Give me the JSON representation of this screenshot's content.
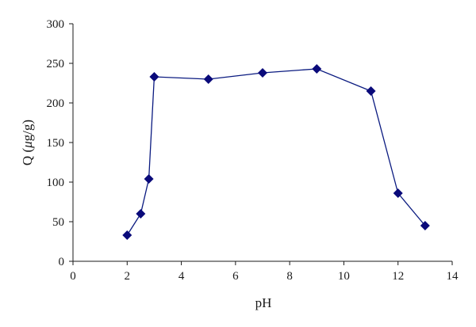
{
  "chart_data": {
    "type": "scatter",
    "xlabel": "pH",
    "ylabel_parts": {
      "pre": "Q (",
      "mu": "μ",
      "post": "g/g)"
    },
    "xlim": [
      0,
      14
    ],
    "ylim": [
      0,
      300
    ],
    "xticks": [
      0,
      2,
      4,
      6,
      8,
      10,
      12,
      14
    ],
    "yticks": [
      0,
      50,
      100,
      150,
      200,
      250,
      300
    ],
    "grid": false,
    "legend": "none",
    "marker": "diamond",
    "line_color": "#0a1a80",
    "marker_color": "#0a0a7a",
    "series": [
      {
        "x": [
          2,
          2.5,
          2.8,
          3,
          5,
          7,
          9,
          11,
          12,
          13
        ],
        "y": [
          33,
          60,
          104,
          233,
          230,
          238,
          243,
          215,
          86,
          45
        ]
      }
    ]
  }
}
